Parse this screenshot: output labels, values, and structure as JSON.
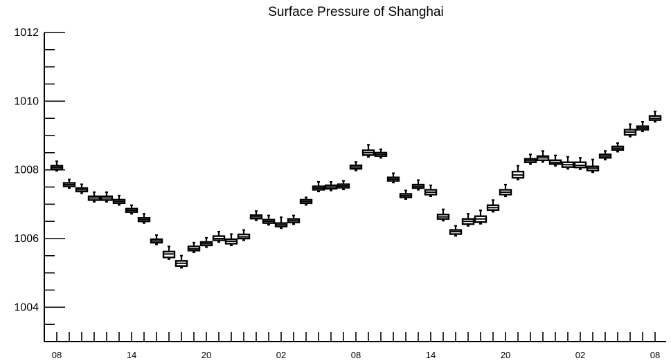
{
  "chart_data": {
    "type": "box",
    "title": "Surface Pressure of Shanghai",
    "xlabel": "",
    "ylabel": "",
    "ylim": [
      1003,
      1012
    ],
    "y_major_ticks": [
      1004,
      1006,
      1008,
      1010,
      1012
    ],
    "x_tick_labels": [
      "08",
      "14",
      "20",
      "02",
      "08",
      "14",
      "20",
      "02",
      "08"
    ],
    "x_tick_label_positions": [
      0,
      6,
      12,
      18,
      24,
      30,
      36,
      42,
      48
    ],
    "grid": false,
    "legend": "none",
    "series": [
      {
        "values": [
          {
            "x": 0,
            "median": 1008.07,
            "q1": 1008.02,
            "q3": 1008.12,
            "min": 1007.97,
            "max": 1008.25
          },
          {
            "x": 1,
            "median": 1007.57,
            "q1": 1007.52,
            "q3": 1007.62,
            "min": 1007.47,
            "max": 1007.72
          },
          {
            "x": 2,
            "median": 1007.42,
            "q1": 1007.37,
            "q3": 1007.47,
            "min": 1007.32,
            "max": 1007.58
          },
          {
            "x": 3,
            "median": 1007.18,
            "q1": 1007.12,
            "q3": 1007.23,
            "min": 1007.07,
            "max": 1007.35
          },
          {
            "x": 4,
            "median": 1007.18,
            "q1": 1007.12,
            "q3": 1007.23,
            "min": 1007.07,
            "max": 1007.35
          },
          {
            "x": 5,
            "median": 1007.08,
            "q1": 1007.03,
            "q3": 1007.13,
            "min": 1006.98,
            "max": 1007.25
          },
          {
            "x": 6,
            "median": 1006.82,
            "q1": 1006.77,
            "q3": 1006.87,
            "min": 1006.72,
            "max": 1006.97
          },
          {
            "x": 7,
            "median": 1006.55,
            "q1": 1006.5,
            "q3": 1006.6,
            "min": 1006.45,
            "max": 1006.72
          },
          {
            "x": 8,
            "median": 1005.93,
            "q1": 1005.88,
            "q3": 1005.98,
            "min": 1005.83,
            "max": 1006.1
          },
          {
            "x": 9,
            "median": 1005.55,
            "q1": 1005.45,
            "q3": 1005.62,
            "min": 1005.4,
            "max": 1005.77
          },
          {
            "x": 10,
            "median": 1005.28,
            "q1": 1005.2,
            "q3": 1005.35,
            "min": 1005.15,
            "max": 1005.5
          },
          {
            "x": 11,
            "median": 1005.7,
            "q1": 1005.65,
            "q3": 1005.77,
            "min": 1005.6,
            "max": 1005.88
          },
          {
            "x": 12,
            "median": 1005.85,
            "q1": 1005.8,
            "q3": 1005.9,
            "min": 1005.75,
            "max": 1006.02
          },
          {
            "x": 13,
            "median": 1006.0,
            "q1": 1005.95,
            "q3": 1006.07,
            "min": 1005.9,
            "max": 1006.2
          },
          {
            "x": 14,
            "median": 1005.92,
            "q1": 1005.85,
            "q3": 1005.98,
            "min": 1005.8,
            "max": 1006.13
          },
          {
            "x": 15,
            "median": 1006.05,
            "q1": 1006.0,
            "q3": 1006.12,
            "min": 1005.95,
            "max": 1006.25
          },
          {
            "x": 16,
            "median": 1006.63,
            "q1": 1006.58,
            "q3": 1006.68,
            "min": 1006.53,
            "max": 1006.8
          },
          {
            "x": 17,
            "median": 1006.5,
            "q1": 1006.45,
            "q3": 1006.55,
            "min": 1006.4,
            "max": 1006.67
          },
          {
            "x": 18,
            "median": 1006.4,
            "q1": 1006.35,
            "q3": 1006.45,
            "min": 1006.3,
            "max": 1006.62
          },
          {
            "x": 19,
            "median": 1006.52,
            "q1": 1006.47,
            "q3": 1006.57,
            "min": 1006.42,
            "max": 1006.67
          },
          {
            "x": 20,
            "median": 1007.08,
            "q1": 1007.03,
            "q3": 1007.13,
            "min": 1006.98,
            "max": 1007.2
          },
          {
            "x": 21,
            "median": 1007.47,
            "q1": 1007.42,
            "q3": 1007.52,
            "min": 1007.37,
            "max": 1007.65
          },
          {
            "x": 22,
            "median": 1007.5,
            "q1": 1007.45,
            "q3": 1007.55,
            "min": 1007.4,
            "max": 1007.65
          },
          {
            "x": 23,
            "median": 1007.53,
            "q1": 1007.48,
            "q3": 1007.58,
            "min": 1007.43,
            "max": 1007.68
          },
          {
            "x": 24,
            "median": 1008.08,
            "q1": 1008.03,
            "q3": 1008.13,
            "min": 1007.98,
            "max": 1008.23
          },
          {
            "x": 25,
            "median": 1008.5,
            "q1": 1008.43,
            "q3": 1008.57,
            "min": 1008.38,
            "max": 1008.73
          },
          {
            "x": 26,
            "median": 1008.45,
            "q1": 1008.4,
            "q3": 1008.5,
            "min": 1008.35,
            "max": 1008.6
          },
          {
            "x": 27,
            "median": 1007.73,
            "q1": 1007.68,
            "q3": 1007.78,
            "min": 1007.63,
            "max": 1007.9
          },
          {
            "x": 28,
            "median": 1007.25,
            "q1": 1007.2,
            "q3": 1007.3,
            "min": 1007.15,
            "max": 1007.4
          },
          {
            "x": 29,
            "median": 1007.52,
            "q1": 1007.47,
            "q3": 1007.57,
            "min": 1007.42,
            "max": 1007.7
          },
          {
            "x": 30,
            "median": 1007.35,
            "q1": 1007.28,
            "q3": 1007.42,
            "min": 1007.23,
            "max": 1007.55
          },
          {
            "x": 31,
            "median": 1006.63,
            "q1": 1006.57,
            "q3": 1006.7,
            "min": 1006.52,
            "max": 1006.85
          },
          {
            "x": 32,
            "median": 1006.2,
            "q1": 1006.13,
            "q3": 1006.25,
            "min": 1006.08,
            "max": 1006.37
          },
          {
            "x": 33,
            "median": 1006.5,
            "q1": 1006.42,
            "q3": 1006.57,
            "min": 1006.37,
            "max": 1006.72
          },
          {
            "x": 34,
            "median": 1006.57,
            "q1": 1006.48,
            "q3": 1006.65,
            "min": 1006.43,
            "max": 1006.82
          },
          {
            "x": 35,
            "median": 1006.9,
            "q1": 1006.83,
            "q3": 1006.97,
            "min": 1006.78,
            "max": 1007.12
          },
          {
            "x": 36,
            "median": 1007.35,
            "q1": 1007.28,
            "q3": 1007.42,
            "min": 1007.23,
            "max": 1007.57
          },
          {
            "x": 37,
            "median": 1007.85,
            "q1": 1007.77,
            "q3": 1007.95,
            "min": 1007.72,
            "max": 1008.12
          },
          {
            "x": 38,
            "median": 1008.27,
            "q1": 1008.22,
            "q3": 1008.32,
            "min": 1008.17,
            "max": 1008.45
          },
          {
            "x": 39,
            "median": 1008.35,
            "q1": 1008.28,
            "q3": 1008.4,
            "min": 1008.23,
            "max": 1008.55
          },
          {
            "x": 40,
            "median": 1008.22,
            "q1": 1008.17,
            "q3": 1008.28,
            "min": 1008.12,
            "max": 1008.42
          },
          {
            "x": 41,
            "median": 1008.15,
            "q1": 1008.08,
            "q3": 1008.22,
            "min": 1008.03,
            "max": 1008.38
          },
          {
            "x": 42,
            "median": 1008.13,
            "q1": 1008.07,
            "q3": 1008.22,
            "min": 1008.02,
            "max": 1008.35
          },
          {
            "x": 43,
            "median": 1008.05,
            "q1": 1007.98,
            "q3": 1008.1,
            "min": 1007.93,
            "max": 1008.3
          },
          {
            "x": 44,
            "median": 1008.4,
            "q1": 1008.35,
            "q3": 1008.45,
            "min": 1008.3,
            "max": 1008.55
          },
          {
            "x": 45,
            "median": 1008.63,
            "q1": 1008.58,
            "q3": 1008.68,
            "min": 1008.53,
            "max": 1008.78
          },
          {
            "x": 46,
            "median": 1009.1,
            "q1": 1009.02,
            "q3": 1009.17,
            "min": 1008.97,
            "max": 1009.33
          },
          {
            "x": 47,
            "median": 1009.22,
            "q1": 1009.17,
            "q3": 1009.27,
            "min": 1009.12,
            "max": 1009.4
          },
          {
            "x": 48,
            "median": 1009.5,
            "q1": 1009.45,
            "q3": 1009.57,
            "min": 1009.4,
            "max": 1009.7
          }
        ]
      }
    ]
  }
}
